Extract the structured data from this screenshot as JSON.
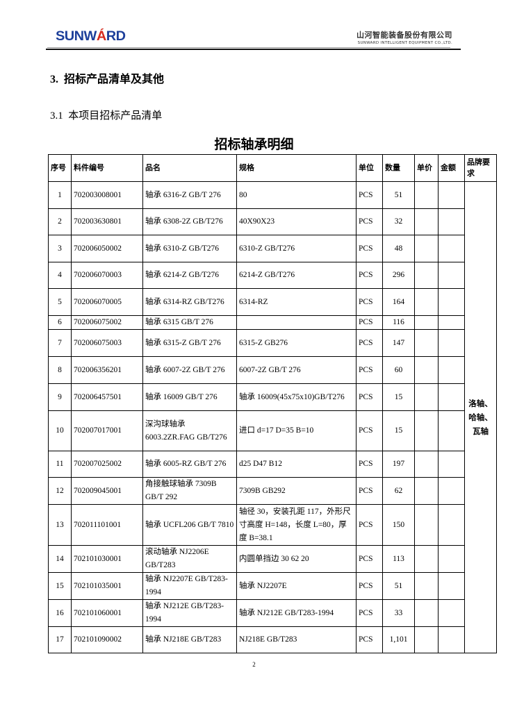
{
  "header": {
    "logo_text": "SUNWARD",
    "company_cn": "山河智能装备股份有限公司",
    "company_en": "SUNWARD INTELLIGENT EQUIPMENT CO.,LTD.",
    "brand_color": "#1d3f9a",
    "accent_color": "#d52b1e"
  },
  "section_heading": "3.  招标产品清单及其他",
  "subsection_heading": "3.1  本项目招标产品清单",
  "table_title": "招标轴承明细",
  "table": {
    "columns": [
      "序号",
      "料件编号",
      "品名",
      "规格",
      "单位",
      "数量",
      "单价",
      "金额",
      "品牌要求"
    ],
    "brand_requirement": "洛轴、哈轴、瓦轴",
    "rows": [
      [
        "1",
        "702003008001",
        "轴承 6316-Z GB/T 276",
        "80",
        "PCS",
        "51"
      ],
      [
        "2",
        "702003630801",
        "轴承 6308-2Z GB/T276",
        "40X90X23",
        "PCS",
        "32"
      ],
      [
        "3",
        "702006050002",
        "轴承 6310-Z GB/T276",
        "6310-Z GB/T276",
        "PCS",
        "48"
      ],
      [
        "4",
        "702006070003",
        "轴承 6214-Z GB/T276",
        "6214-Z GB/T276",
        "PCS",
        "296"
      ],
      [
        "5",
        "702006070005",
        "轴承 6314-RZ GB/T276",
        "6314-RZ",
        "PCS",
        "164"
      ],
      [
        "6",
        "702006075002",
        "轴承 6315 GB/T 276",
        "",
        "PCS",
        "116"
      ],
      [
        "7",
        "702006075003",
        "轴承 6315-Z GB/T 276",
        "6315-Z GB276",
        "PCS",
        "147"
      ],
      [
        "8",
        "702006356201",
        "轴承 6007-2Z GB/T 276",
        "6007-2Z GB/T 276",
        "PCS",
        "60"
      ],
      [
        "9",
        "702006457501",
        "轴承 16009 GB/T 276",
        "轴承 16009(45x75x10)GB/T276",
        "PCS",
        "15"
      ],
      [
        "10",
        "702007017001",
        "深沟球轴承 6003.2ZR.FAG GB/T276",
        "进口  d=17 D=35 B=10",
        "PCS",
        "15"
      ],
      [
        "11",
        "702007025002",
        "轴承 6005-RZ GB/T 276",
        "d25 D47 B12",
        "PCS",
        "197"
      ],
      [
        "12",
        "702009045001",
        "角接触球轴承 7309B GB/T 292",
        "7309B GB292",
        "PCS",
        "62"
      ],
      [
        "13",
        "702011101001",
        "轴承 UCFL206 GB/T 7810",
        "轴径 30，安装孔距 117，外形尺寸高度 H=148，长度 L=80，厚度 B=38.1",
        "PCS",
        "150"
      ],
      [
        "14",
        "702101030001",
        "滚动轴承 NJ2206E GB/T283",
        "内圆单挡边 30 62 20",
        "PCS",
        "113"
      ],
      [
        "15",
        "702101035001",
        "轴承 NJ2207E GB/T283-1994",
        "轴承 NJ2207E",
        "PCS",
        "51"
      ],
      [
        "16",
        "702101060001",
        "轴承 NJ212E GB/T283-1994",
        "轴承 NJ212E GB/T283-1994",
        "PCS",
        "33"
      ],
      [
        "17",
        "702101090002",
        "轴承 NJ218E GB/T283",
        "NJ218E GB/T283",
        "PCS",
        "1,101"
      ]
    ]
  },
  "page_number": "2"
}
